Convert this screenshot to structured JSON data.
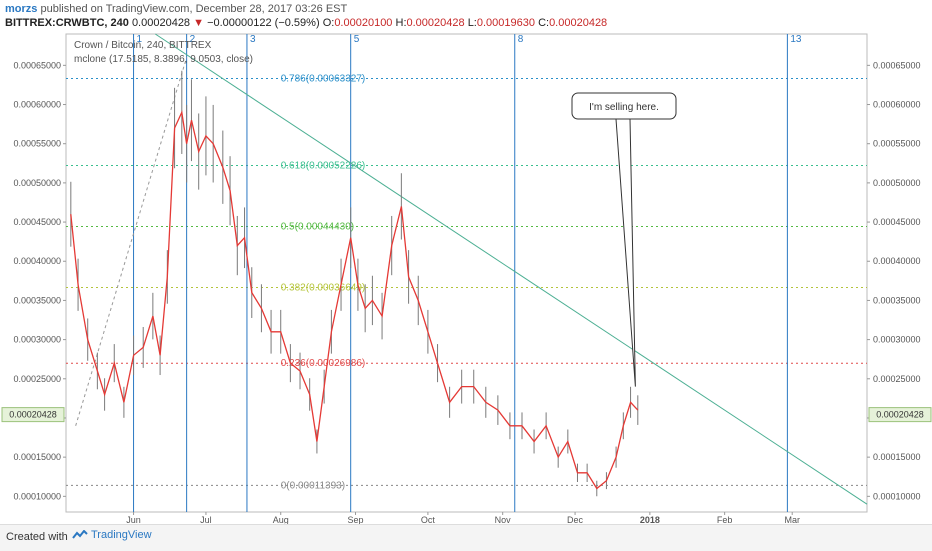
{
  "header": {
    "user": "morzs",
    "published": "published on TradingView.com, December 28, 2017 03:26 EST",
    "symbol": "BITTREX:CRWBTC, 240",
    "price": "0.00020428",
    "change_arrow": "▼",
    "change": "−0.00000122 (−0.59%)",
    "o_label": "O:",
    "o_value": "0.00020100",
    "h_label": "H:",
    "h_value": "0.00020428",
    "l_label": "L:",
    "l_value": "0.00019630",
    "c_label": "C:",
    "c_value": "0.00020428"
  },
  "legend": {
    "title": "Crown / Bitcoin, 240, BITTREX",
    "indicator": "mclone (17.5185, 8.3896, 9.0503, close)"
  },
  "footer": {
    "created": "Created with",
    "brand": "TradingView"
  },
  "colors": {
    "candle": "#7a7a7a",
    "indicator": "#e53935",
    "trendline": "#4caf93",
    "cycle": "#2a78c2",
    "arrow": "#2e7d32"
  },
  "chart_data": {
    "type": "line",
    "ylim": [
      8e-05,
      0.00069
    ],
    "x_ticks": [
      "Jun",
      "Jul",
      "Aug",
      "Sep",
      "Oct",
      "Nov",
      "Dec",
      "2018",
      "Feb",
      "Mar"
    ],
    "y_ticks": [
      "0.00065000",
      "0.00060000",
      "0.00055000",
      "0.00050000",
      "0.00045000",
      "0.00040000",
      "0.00035000",
      "0.00030000",
      "0.00025000",
      "0.00020000",
      "0.00015000",
      "0.00010000"
    ],
    "y_tick_values": [
      0.00065,
      0.0006,
      0.00055,
      0.0005,
      0.00045,
      0.0004,
      0.00035,
      0.0003,
      0.00025,
      0.0002,
      0.00015,
      0.0001
    ],
    "price_label": "0.00020428",
    "price_value": 0.00020428,
    "series": [
      {
        "name": "mclone",
        "x": [
          "2017-05-06",
          "2017-05-09",
          "2017-05-13",
          "2017-05-17",
          "2017-05-20",
          "2017-05-24",
          "2017-05-28",
          "2017-06-01",
          "2017-06-05",
          "2017-06-09",
          "2017-06-12",
          "2017-06-15",
          "2017-06-18",
          "2017-06-21",
          "2017-06-23",
          "2017-06-25",
          "2017-06-28",
          "2017-07-01",
          "2017-07-04",
          "2017-07-08",
          "2017-07-11",
          "2017-07-14",
          "2017-07-17",
          "2017-07-20",
          "2017-07-24",
          "2017-07-28",
          "2017-08-01",
          "2017-08-05",
          "2017-08-09",
          "2017-08-13",
          "2017-08-16",
          "2017-08-19",
          "2017-08-22",
          "2017-08-26",
          "2017-08-30",
          "2017-09-02",
          "2017-09-05",
          "2017-09-08",
          "2017-09-12",
          "2017-09-16",
          "2017-09-20",
          "2017-09-23",
          "2017-09-27",
          "2017-10-01",
          "2017-10-05",
          "2017-10-10",
          "2017-10-15",
          "2017-10-20",
          "2017-10-25",
          "2017-10-30",
          "2017-11-04",
          "2017-11-09",
          "2017-11-14",
          "2017-11-19",
          "2017-11-24",
          "2017-11-28",
          "2017-12-02",
          "2017-12-06",
          "2017-12-10",
          "2017-12-14",
          "2017-12-18",
          "2017-12-21",
          "2017-12-24",
          "2017-12-27"
        ],
        "y": [
          0.00046,
          0.00037,
          0.0003,
          0.00026,
          0.00023,
          0.00027,
          0.00022,
          0.00028,
          0.00029,
          0.00033,
          0.00028,
          0.00038,
          0.00057,
          0.00059,
          0.00055,
          0.00058,
          0.00054,
          0.00056,
          0.00055,
          0.00052,
          0.00049,
          0.00042,
          0.00043,
          0.00036,
          0.00034,
          0.00031,
          0.00031,
          0.00027,
          0.00026,
          0.00023,
          0.00017,
          0.00024,
          0.00031,
          0.00037,
          0.00043,
          0.00037,
          0.00034,
          0.00035,
          0.00033,
          0.00042,
          0.00047,
          0.00038,
          0.00035,
          0.00031,
          0.00027,
          0.00022,
          0.00024,
          0.00024,
          0.00022,
          0.00021,
          0.00019,
          0.00019,
          0.00017,
          0.00019,
          0.00015,
          0.00017,
          0.00013,
          0.00013,
          0.00011,
          0.00012,
          0.00015,
          0.00019,
          0.00022,
          0.00021
        ]
      }
    ],
    "fib_levels": [
      {
        "label": "0.786(0.00063327)",
        "value": 0.00063327,
        "color": "#2a8fc9"
      },
      {
        "label": "0.618(0.00052226)",
        "value": 0.00052226,
        "color": "#3bbf8f"
      },
      {
        "label": "0.5(0.00044430)",
        "value": 0.0004443,
        "color": "#55b944"
      },
      {
        "label": "0.382(0.00036649)",
        "value": 0.00036649,
        "color": "#b5c43a"
      },
      {
        "label": "0.236(0.00026986)",
        "value": 0.00026986,
        "color": "#e04a4a"
      },
      {
        "label": "0(0.00011393)",
        "value": 0.00011393,
        "color": "#888888"
      }
    ],
    "cycle_lines": [
      {
        "label": "1",
        "date": "2017-06-01"
      },
      {
        "label": "2",
        "date": "2017-06-23"
      },
      {
        "label": "3",
        "date": "2017-07-18"
      },
      {
        "label": "5",
        "date": "2017-08-30"
      },
      {
        "label": "8",
        "date": "2017-11-06"
      },
      {
        "label": "13",
        "date": "2018-02-27"
      }
    ],
    "trendlines": [
      {
        "name": "descending-trendline",
        "x": [
          "2017-06-10",
          "2018-04-01"
        ],
        "y": [
          0.00069,
          9e-05
        ]
      },
      {
        "name": "fib-baseline",
        "x": [
          "2017-05-08",
          "2017-06-23"
        ],
        "y": [
          0.00019,
          0.00066
        ]
      }
    ],
    "callout": {
      "text": "I'm selling here.",
      "date": "2017-12-26",
      "value": 0.00024
    }
  }
}
